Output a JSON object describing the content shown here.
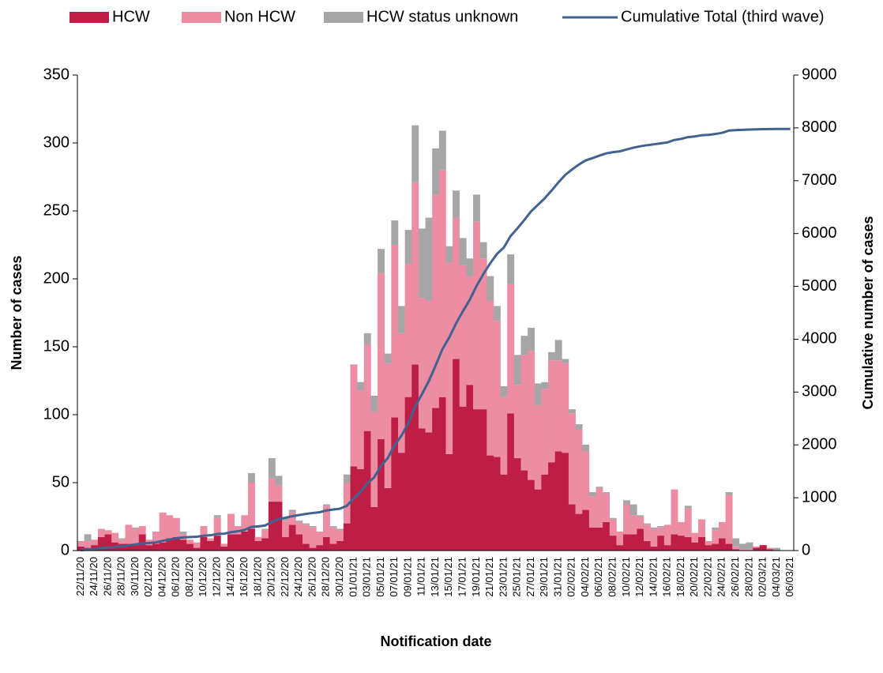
{
  "chart_data": {
    "type": "bar",
    "stacked": true,
    "x_label": "Notification date",
    "y_label": "Number of cases",
    "y2_label": "Cumulative number of cases",
    "categories": [
      "22/11/20",
      null,
      "24/11/20",
      null,
      "26/11/20",
      null,
      "28/11/20",
      null,
      "30/11/20",
      null,
      "02/12/20",
      null,
      "04/12/20",
      null,
      "06/12/20",
      null,
      "08/12/20",
      null,
      "10/12/20",
      null,
      "12/12/20",
      null,
      "14/12/20",
      null,
      "16/12/20",
      null,
      "18/12/20",
      null,
      "20/12/20",
      null,
      "22/12/20",
      null,
      "24/12/20",
      null,
      "26/12/20",
      null,
      "28/12/20",
      null,
      "30/12/20",
      null,
      "01/01/21",
      null,
      "03/01/21",
      null,
      "05/01/21",
      null,
      "07/01/21",
      null,
      "09/01/21",
      null,
      "11/01/21",
      null,
      "13/01/21",
      null,
      "15/01/21",
      null,
      "17/01/21",
      null,
      "19/01/21",
      null,
      "21/01/21",
      null,
      "23/01/21",
      null,
      "25/01/21",
      null,
      "27/01/21",
      null,
      "29/01/21",
      null,
      "31/01/21",
      null,
      "02/02/21",
      null,
      "04/02/21",
      null,
      "06/02/21",
      null,
      "08/02/21",
      null,
      "10/02/21",
      null,
      "12/02/21",
      null,
      "14/02/21",
      null,
      "16/02/21",
      null,
      "18/02/21",
      null,
      "20/02/21",
      null,
      "22/02/21",
      null,
      "24/02/21",
      null,
      "26/02/21",
      null,
      "28/02/21",
      null,
      "02/03/21",
      null,
      "04/03/21",
      null,
      "06/03/21"
    ],
    "series": [
      {
        "name": "HCW",
        "color": "#be1e45",
        "values": [
          3,
          2,
          4,
          10,
          12,
          6,
          5,
          5,
          4,
          12,
          4,
          5,
          6,
          9,
          10,
          8,
          5,
          2,
          10,
          7,
          11,
          3,
          12,
          12,
          14,
          16,
          7,
          9,
          36,
          36,
          10,
          19,
          12,
          5,
          2,
          4,
          10,
          5,
          7,
          20,
          62,
          60,
          88,
          32,
          82,
          46,
          98,
          72,
          113,
          137,
          90,
          87,
          105,
          113,
          71,
          141,
          106,
          122,
          104,
          104,
          70,
          69,
          56,
          101,
          68,
          59,
          52,
          45,
          56,
          65,
          73,
          72,
          34,
          27,
          30,
          17,
          17,
          21,
          11,
          4,
          12,
          12,
          16,
          7,
          3,
          11,
          4,
          12,
          11,
          10,
          6,
          10,
          4,
          5,
          9,
          5,
          1,
          0,
          0,
          2,
          4,
          1,
          0,
          0,
          0
        ]
      },
      {
        "name": "Non HCW",
        "color": "#ec8da4",
        "values": [
          4,
          5,
          4,
          6,
          3,
          7,
          3,
          14,
          12,
          6,
          4,
          9,
          22,
          17,
          14,
          4,
          3,
          4,
          8,
          2,
          13,
          2,
          15,
          6,
          12,
          34,
          3,
          6,
          17,
          12,
          12,
          9,
          9,
          14,
          15,
          10,
          23,
          12,
          8,
          30,
          75,
          58,
          64,
          70,
          122,
          92,
          127,
          88,
          98,
          134,
          96,
          97,
          157,
          167,
          141,
          104,
          104,
          80,
          138,
          111,
          114,
          100,
          57,
          95,
          54,
          85,
          95,
          62,
          63,
          75,
          67,
          66,
          67,
          62,
          43,
          23,
          29,
          21,
          12,
          10,
          22,
          14,
          9,
          12,
          13,
          6,
          15,
          33,
          10,
          21,
          7,
          13,
          3,
          10,
          12,
          36,
          2,
          1,
          1,
          1,
          0,
          1,
          0,
          0,
          0
        ]
      },
      {
        "name": "HCW status unknown",
        "color": "#a6a6a6",
        "values": [
          0,
          5,
          0,
          0,
          0,
          0,
          1,
          0,
          1,
          0,
          0,
          0,
          0,
          0,
          0,
          2,
          0,
          0,
          0,
          0,
          2,
          0,
          0,
          0,
          0,
          7,
          0,
          1,
          15,
          7,
          2,
          2,
          1,
          1,
          1,
          0,
          1,
          1,
          1,
          6,
          0,
          6,
          8,
          12,
          18,
          7,
          18,
          20,
          25,
          42,
          51,
          61,
          34,
          29,
          12,
          20,
          20,
          13,
          20,
          12,
          18,
          11,
          8,
          22,
          22,
          14,
          17,
          16,
          5,
          6,
          15,
          3,
          3,
          4,
          5,
          3,
          1,
          1,
          1,
          0,
          3,
          8,
          1,
          1,
          1,
          1,
          0,
          0,
          0,
          2,
          0,
          0,
          0,
          2,
          0,
          2,
          6,
          4,
          5,
          0,
          0,
          0,
          2,
          0,
          0
        ]
      },
      {
        "name": "Cumulative Total (third wave)",
        "color": "#41628f",
        "type": "line",
        "axis": "y2",
        "values": [
          7,
          19,
          27,
          43,
          58,
          71,
          80,
          99,
          116,
          134,
          142,
          156,
          184,
          210,
          234,
          248,
          256,
          262,
          280,
          289,
          315,
          320,
          347,
          365,
          391,
          448,
          458,
          474,
          542,
          597,
          621,
          651,
          673,
          693,
          711,
          725,
          759,
          777,
          793,
          849,
          986,
          1110,
          1270,
          1384,
          1606,
          1751,
          1994,
          2174,
          2410,
          2723,
          2960,
          3205,
          3501,
          3810,
          4034,
          4299,
          4529,
          4744,
          5006,
          5233,
          5435,
          5615,
          5736,
          5954,
          6098,
          6256,
          6420,
          6543,
          6667,
          6813,
          6968,
          7109,
          7213,
          7306,
          7384,
          7427,
          7474,
          7517,
          7541,
          7555,
          7592,
          7626,
          7652,
          7672,
          7689,
          7707,
          7726,
          7771,
          7792,
          7825,
          7838,
          7861,
          7868,
          7885,
          7906,
          7949,
          7958,
          7963,
          7969,
          7972,
          7976,
          7978,
          7980,
          7980,
          7980
        ]
      }
    ],
    "ylim": [
      0,
      350
    ],
    "yticks": [
      0,
      50,
      100,
      150,
      200,
      250,
      300,
      350
    ],
    "y2lim": [
      0,
      9000
    ],
    "y2ticks": [
      0,
      1000,
      2000,
      3000,
      4000,
      5000,
      6000,
      7000,
      8000,
      9000
    ],
    "legend": "top"
  }
}
